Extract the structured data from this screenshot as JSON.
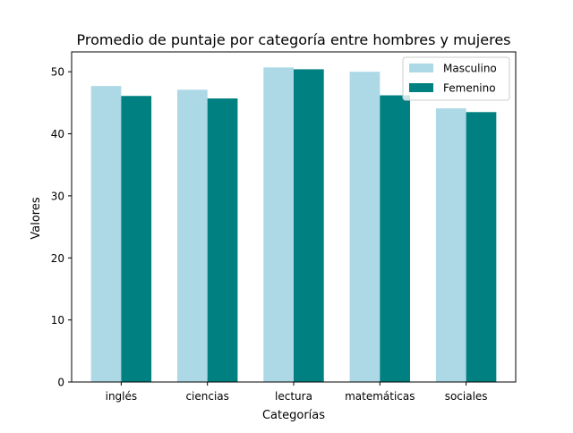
{
  "chart_data": {
    "type": "bar",
    "title": "Promedio de puntaje por categoría entre hombres y mujeres",
    "xlabel": "Categorías",
    "ylabel": "Valores",
    "categories": [
      "inglés",
      "ciencias",
      "lectura",
      "matemáticas",
      "sociales"
    ],
    "series": [
      {
        "name": "Masculino",
        "color": "#add8e6",
        "values": [
          47.7,
          47.1,
          50.7,
          50.0,
          44.1
        ]
      },
      {
        "name": "Femenino",
        "color": "#008080",
        "values": [
          46.1,
          45.7,
          50.4,
          46.2,
          43.5
        ]
      }
    ],
    "ylim": [
      0,
      53.2
    ],
    "yticks": [
      0,
      10,
      20,
      30,
      40,
      50
    ],
    "grid": false,
    "legend_position": "top-right"
  }
}
